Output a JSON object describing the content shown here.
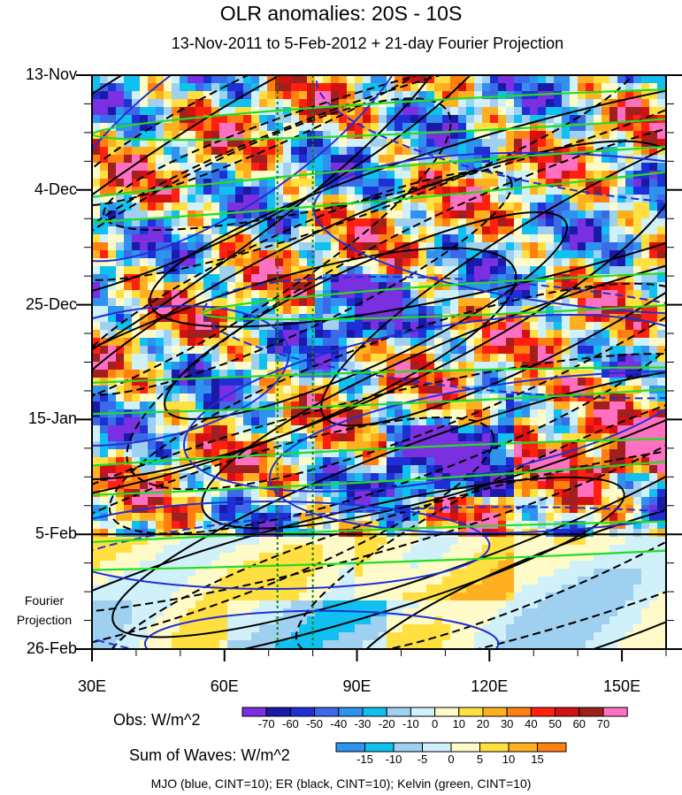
{
  "chart_data": {
    "type": "heatmap",
    "title": "OLR anomalies: 20S - 10S",
    "subtitle": "13-Nov-2011 to 5-Feb-2012 + 21-day Fourier Projection",
    "x_axis": {
      "range": [
        30,
        160
      ],
      "tick_values": [
        30,
        60,
        90,
        120,
        150
      ],
      "tick_labels": [
        "30E",
        "60E",
        "90E",
        "120E",
        "150E"
      ]
    },
    "y_axis": {
      "tick_labels": [
        "13-Nov",
        "4-Dec",
        "25-Dec",
        "15-Jan",
        "5-Feb",
        "26-Feb"
      ],
      "tick_day_offsets": [
        0,
        21,
        42,
        63,
        84,
        105
      ],
      "range_days": [
        0,
        105
      ],
      "observation_end_day": 84
    },
    "forecast_label": "Fourier\nProjection",
    "vertical_reference_lines_lon": [
      72,
      80
    ],
    "obs_colorbar": {
      "title": "Obs: W/m^2",
      "levels": [
        -70,
        -60,
        -50,
        -40,
        -30,
        -20,
        -10,
        0,
        10,
        20,
        30,
        40,
        50,
        60,
        70
      ],
      "colors": [
        "#7a2fe0",
        "#1a1aa8",
        "#1f2fd6",
        "#3a6ae8",
        "#2f92ee",
        "#10c0f0",
        "#a0d0f0",
        "#d0f0fa",
        "#fffbc8",
        "#ffe040",
        "#ffb020",
        "#ff7f10",
        "#ff2010",
        "#d41010",
        "#a02020",
        "#ff70c0"
      ]
    },
    "waves_colorbar": {
      "title": "Sum of Waves: W/m^2",
      "levels": [
        -15,
        -10,
        -5,
        0,
        5,
        10,
        15
      ],
      "colors": [
        "#2f92ee",
        "#10c0f0",
        "#a0d0f0",
        "#d0f0fa",
        "#fffbc8",
        "#ffe040",
        "#ffb020",
        "#ff7f10"
      ]
    },
    "contours": [
      {
        "wave": "MJO",
        "color": "#1f2fd6",
        "cint": 10
      },
      {
        "wave": "ER",
        "color": "#000000",
        "cint": 10
      },
      {
        "wave": "Kelvin",
        "color": "#22dd22",
        "cint": 10
      }
    ],
    "footer": "MJO (blue, CINT=10); ER (black, CINT=10); Kelvin (green, CINT=10)"
  }
}
